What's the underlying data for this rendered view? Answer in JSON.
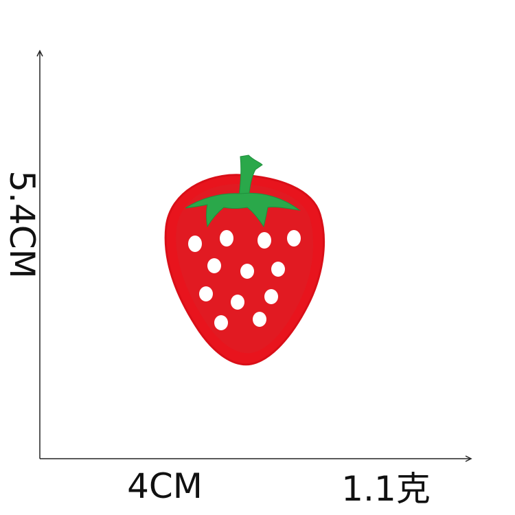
{
  "dimensions": {
    "height_text": "5.4CM",
    "width_text": "4CM",
    "weight_text": "1.1克"
  },
  "product": {
    "icon": "strawberry-patch",
    "colors": {
      "body": "#e8141d",
      "body_edge": "#d90f18",
      "leaves": "#2aa84a",
      "seeds": "#ffffff",
      "axes": "#222222"
    }
  }
}
